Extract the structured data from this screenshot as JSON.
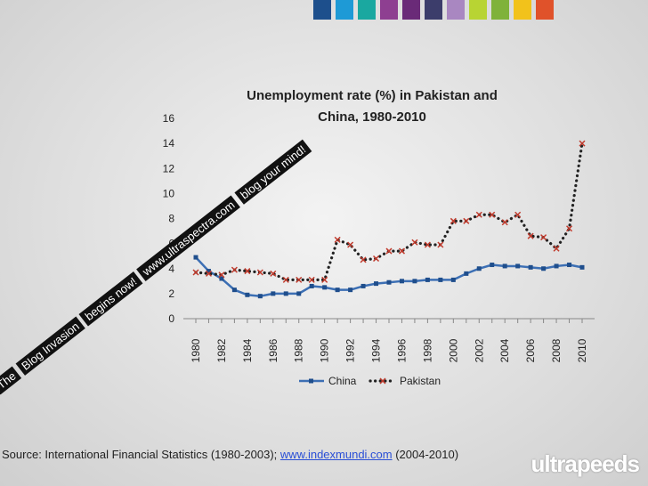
{
  "palette": [
    "#1d4f8c",
    "#1e9ad6",
    "#1aa8a0",
    "#8e3f91",
    "#6a2a78",
    "#3c3d6b",
    "#a987c1",
    "#b8d433",
    "#7fb23a",
    "#f2c21b",
    "#e0522a"
  ],
  "chart_data": {
    "type": "line",
    "title_line1": "Unemployment rate (%) in Pakistan and",
    "title_line2": "China, 1980-2010",
    "x": [
      1980,
      1981,
      1982,
      1983,
      1984,
      1985,
      1986,
      1987,
      1988,
      1989,
      1990,
      1991,
      1992,
      1993,
      1994,
      1995,
      1996,
      1997,
      1998,
      1999,
      2000,
      2001,
      2002,
      2003,
      2004,
      2005,
      2006,
      2007,
      2008,
      2009,
      2010
    ],
    "x_tick_labels": [
      "1980",
      "1982",
      "1984",
      "1986",
      "1988",
      "1990",
      "1992",
      "1994",
      "1996",
      "1998",
      "2000",
      "2002",
      "2004",
      "2006",
      "2008",
      "2010"
    ],
    "y_ticks": [
      0,
      2,
      4,
      6,
      8,
      10,
      12,
      14,
      16
    ],
    "ylim": [
      0,
      16
    ],
    "series": [
      {
        "name": "China",
        "color": "#3c6fb4",
        "style": "solid",
        "values": [
          4.9,
          3.8,
          3.2,
          2.3,
          1.9,
          1.8,
          2.0,
          2.0,
          2.0,
          2.6,
          2.5,
          2.3,
          2.3,
          2.6,
          2.8,
          2.9,
          3.0,
          3.0,
          3.1,
          3.1,
          3.1,
          3.6,
          4.0,
          4.3,
          4.2,
          4.2,
          4.1,
          4.0,
          4.2,
          4.3,
          4.1
        ]
      },
      {
        "name": "Pakistan",
        "color": "#222222",
        "marker_color": "#c0392b",
        "style": "dotted",
        "values": [
          3.7,
          3.6,
          3.5,
          3.9,
          3.8,
          3.7,
          3.6,
          3.1,
          3.1,
          3.1,
          3.1,
          6.3,
          5.9,
          4.7,
          4.8,
          5.4,
          5.4,
          6.1,
          5.9,
          5.9,
          7.8,
          7.8,
          8.3,
          8.3,
          7.7,
          8.3,
          6.6,
          6.5,
          5.6,
          7.2,
          14.0
        ]
      }
    ],
    "legend_position": "bottom",
    "grid": false
  },
  "source": {
    "prefix": "Source: International Financial Statistics (1980-2003); ",
    "link": "www.indexmundi.com",
    "suffix": " (2004-2010)"
  },
  "watermark": {
    "line1": "The",
    "line2": "Blog Invasion",
    "line3": "begins now!",
    "line4": "www.ultraspectra.com",
    "line5": "blog your mind!"
  },
  "logo": {
    "text": "ultrapeeds"
  }
}
